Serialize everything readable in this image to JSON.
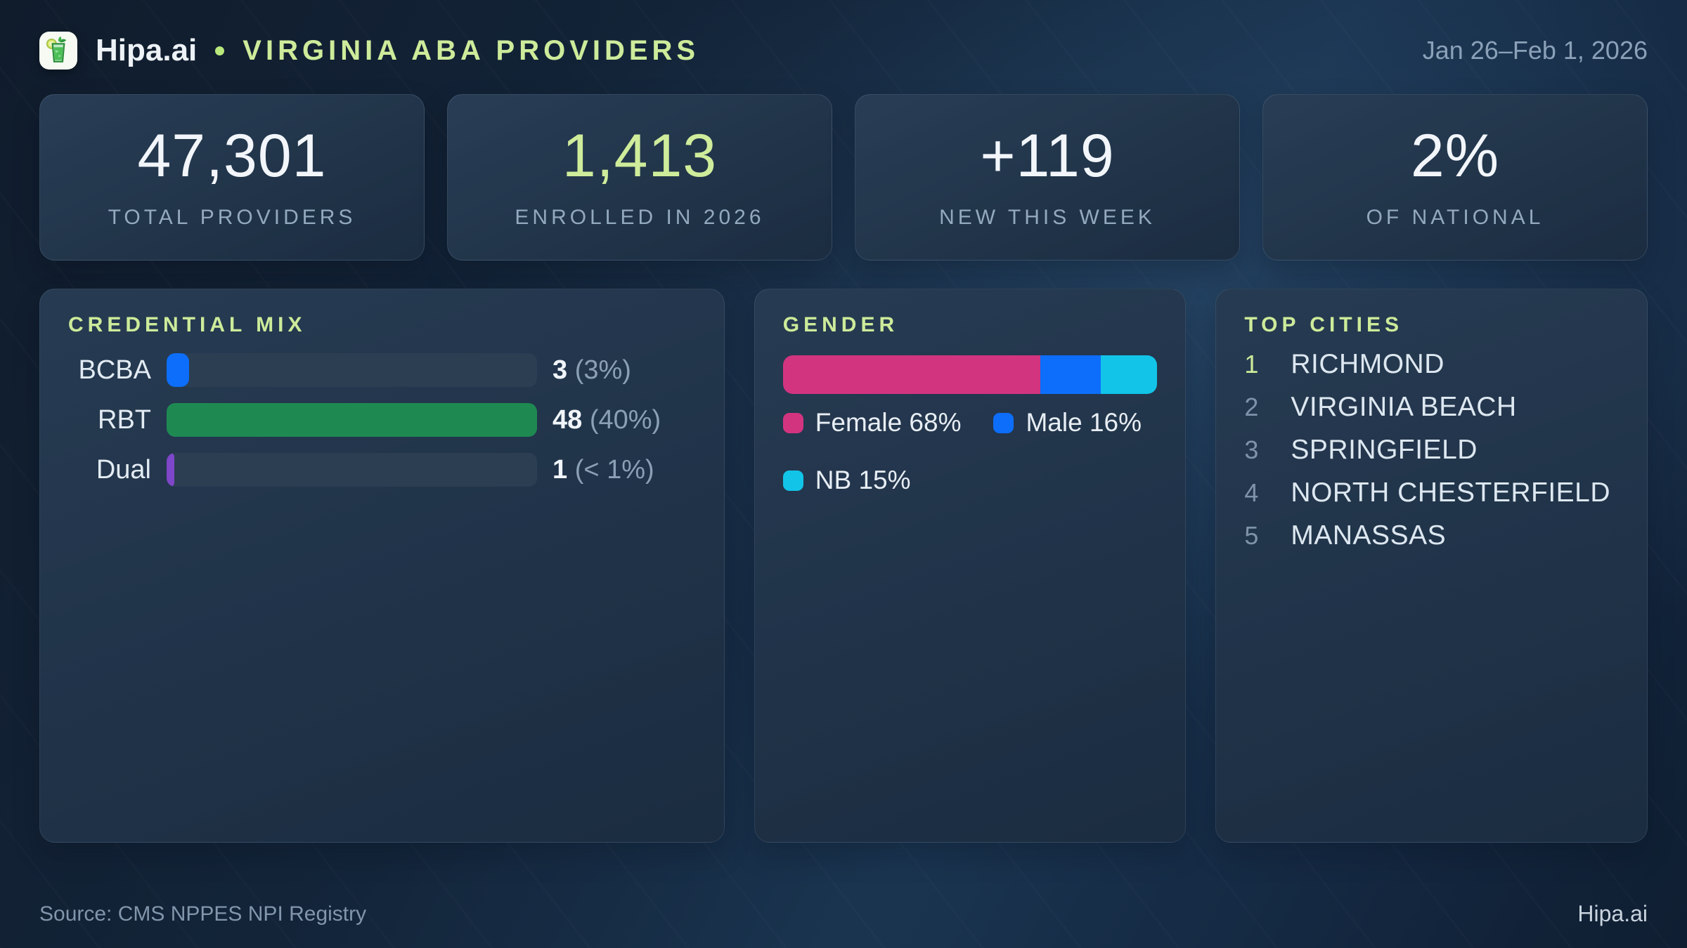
{
  "header": {
    "brand": "Hipa.ai",
    "title": "VIRGINIA ABA PROVIDERS",
    "date_range": "Jan 26–Feb 1, 2026",
    "logo_icon": "mojito-glass-icon"
  },
  "stats": [
    {
      "value": "47,301",
      "label": "TOTAL PROVIDERS"
    },
    {
      "value": "1,413",
      "label": "ENROLLED IN 2026"
    },
    {
      "value": "+119",
      "label": "NEW THIS WEEK"
    },
    {
      "value": "2%",
      "label": "OF NATIONAL"
    }
  ],
  "credential_mix": {
    "heading": "CREDENTIAL MIX",
    "rows": [
      {
        "label": "BCBA",
        "value": "3",
        "pct_text": "(3%)",
        "fill": {
          "width": "6%",
          "color": "#0d6efb"
        }
      },
      {
        "label": "RBT",
        "value": "48",
        "pct_text": "(40%)",
        "fill": {
          "width": "100%",
          "color": "#1e8a52"
        }
      },
      {
        "label": "Dual",
        "value": "1",
        "pct_text": "(< 1%)",
        "fill": {
          "width": "2%",
          "color": "#7e46c9"
        }
      }
    ]
  },
  "gender": {
    "heading": "GENDER",
    "segments": [
      {
        "name": "Female",
        "fill": {
          "width": "68.7%",
          "color": "#d23480"
        }
      },
      {
        "name": "Male",
        "fill": {
          "width": "16.2%",
          "color": "#0d6efb"
        }
      },
      {
        "name": "NB",
        "fill": {
          "width": "15.1%",
          "color": "#12c4e8"
        }
      }
    ],
    "legend": [
      {
        "text": "Female 68%",
        "fill": {
          "color": "#d23480"
        }
      },
      {
        "text": "Male 16%",
        "fill": {
          "color": "#0d6efb"
        }
      },
      {
        "text": "NB 15%",
        "fill": {
          "color": "#12c4e8"
        }
      }
    ]
  },
  "top_cities": {
    "heading": "TOP CITIES",
    "items": [
      {
        "rank": "1",
        "name": "RICHMOND"
      },
      {
        "rank": "2",
        "name": "VIRGINIA BEACH"
      },
      {
        "rank": "3",
        "name": "SPRINGFIELD"
      },
      {
        "rank": "4",
        "name": "NORTH CHESTERFIELD"
      },
      {
        "rank": "5",
        "name": "MANASSAS"
      }
    ]
  },
  "footer": {
    "source": "Source: CMS NPPES NPI Registry",
    "brand": "Hipa.ai"
  },
  "colors": {
    "accent_green": "#cdeb9a",
    "bar_blue": "#0d6efb",
    "bar_green": "#1e8a52",
    "bar_purple": "#7e46c9",
    "gender_pink": "#d23480",
    "gender_blue": "#0d6efb",
    "gender_cyan": "#12c4e8",
    "track": "#2c3e52",
    "muted_text": "#8ba0b5"
  },
  "chart_data": [
    {
      "type": "bar",
      "orientation": "horizontal",
      "title": "CREDENTIAL MIX",
      "categories": [
        "BCBA",
        "RBT",
        "Dual"
      ],
      "values": [
        3,
        48,
        1
      ],
      "value_labels": [
        "3 (3%)",
        "48 (40%)",
        "1 (< 1%)"
      ],
      "colors": [
        "#0d6efb",
        "#1e8a52",
        "#7e46c9"
      ],
      "note": "bar lengths normalized to max value (48)"
    },
    {
      "type": "bar",
      "subtype": "stacked-100pct",
      "title": "GENDER",
      "categories": [
        "Female",
        "Male",
        "NB"
      ],
      "values": [
        68,
        16,
        15
      ],
      "unit": "%",
      "colors": [
        "#d23480",
        "#0d6efb",
        "#12c4e8"
      ],
      "legend": [
        "Female 68%",
        "Male 16%",
        "NB 15%"
      ],
      "legend_position": "below"
    },
    {
      "type": "table",
      "title": "TOP CITIES",
      "columns": [
        "rank",
        "city"
      ],
      "rows": [
        [
          "1",
          "RICHMOND"
        ],
        [
          "2",
          "VIRGINIA BEACH"
        ],
        [
          "3",
          "SPRINGFIELD"
        ],
        [
          "4",
          "NORTH CHESTERFIELD"
        ],
        [
          "5",
          "MANASSAS"
        ]
      ]
    }
  ]
}
